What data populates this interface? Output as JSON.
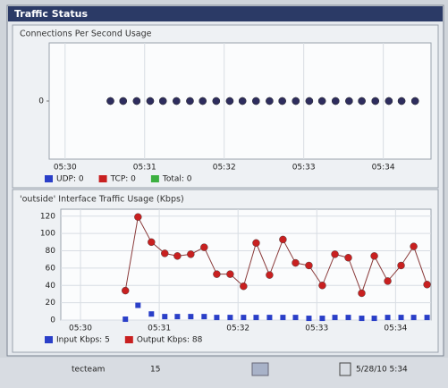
{
  "window": {
    "title": "Traffic Status"
  },
  "chart_data": [
    {
      "type": "line",
      "title": "Connections Per Second Usage",
      "x": [
        30.57,
        30.73,
        30.9,
        31.07,
        31.23,
        31.4,
        31.57,
        31.73,
        31.9,
        32.07,
        32.23,
        32.4,
        32.57,
        32.73,
        32.9,
        33.07,
        33.23,
        33.4,
        33.57,
        33.73,
        33.9,
        34.07,
        34.23,
        34.4
      ],
      "series": [
        {
          "name": "UDP: 0",
          "color": "#2a3fc8",
          "marker_color": "#2e2d5e",
          "marker": "circle",
          "values": [
            0,
            0,
            0,
            0,
            0,
            0,
            0,
            0,
            0,
            0,
            0,
            0,
            0,
            0,
            0,
            0,
            0,
            0,
            0,
            0,
            0,
            0,
            0,
            0
          ]
        },
        {
          "name": "TCP: 0",
          "color": "#c82020",
          "marker_color": "#2e2d5e",
          "marker": "circle",
          "values": [
            0,
            0,
            0,
            0,
            0,
            0,
            0,
            0,
            0,
            0,
            0,
            0,
            0,
            0,
            0,
            0,
            0,
            0,
            0,
            0,
            0,
            0,
            0,
            0
          ]
        },
        {
          "name": "Total: 0",
          "color": "#3cb040",
          "marker_color": "#2e2d5e",
          "marker": "circle",
          "values": [
            0,
            0,
            0,
            0,
            0,
            0,
            0,
            0,
            0,
            0,
            0,
            0,
            0,
            0,
            0,
            0,
            0,
            0,
            0,
            0,
            0,
            0,
            0,
            0
          ]
        }
      ],
      "xlim": [
        29.8,
        34.6
      ],
      "ylim": [
        -1,
        1
      ],
      "yticks": [
        0
      ],
      "xticks": [
        {
          "value": 30,
          "label": "05:30"
        },
        {
          "value": 31,
          "label": "05:31"
        },
        {
          "value": 32,
          "label": "05:32"
        },
        {
          "value": 33,
          "label": "05:33"
        },
        {
          "value": 34,
          "label": "05:34"
        }
      ],
      "grid": "x"
    },
    {
      "type": "line",
      "title": "'outside' Interface Traffic Usage (Kbps)",
      "x": [
        30.57,
        30.73,
        30.9,
        31.07,
        31.23,
        31.4,
        31.57,
        31.73,
        31.9,
        32.07,
        32.23,
        32.4,
        32.57,
        32.73,
        32.9,
        33.07,
        33.23,
        33.4,
        33.57,
        33.73,
        33.9,
        34.07,
        34.23,
        34.4
      ],
      "series": [
        {
          "name": "Input Kbps: 5",
          "color": "#2a3fc8",
          "marker": "square",
          "line": false,
          "values": [
            1,
            17,
            7,
            4,
            4,
            4,
            4,
            3,
            3,
            3,
            3,
            3,
            3,
            3,
            2,
            2,
            3,
            3,
            2,
            2,
            3,
            3,
            3,
            3
          ]
        },
        {
          "name": "Output Kbps: 88",
          "color": "#c82020",
          "marker": "circle",
          "line": true,
          "values": [
            34,
            119,
            90,
            77,
            74,
            76,
            84,
            53,
            53,
            39,
            89,
            52,
            93,
            66,
            63,
            40,
            76,
            72,
            31,
            74,
            45,
            63,
            85,
            41
          ]
        }
      ],
      "xlim": [
        29.75,
        34.45
      ],
      "ylim": [
        0,
        128
      ],
      "yticks": [
        0,
        20,
        40,
        60,
        80,
        100,
        120
      ],
      "xticks": [
        {
          "value": 30,
          "label": "05:30"
        },
        {
          "value": 31,
          "label": "05:31"
        },
        {
          "value": 32,
          "label": "05:32"
        },
        {
          "value": 33,
          "label": "05:33"
        },
        {
          "value": 34,
          "label": "05:34"
        }
      ],
      "grid": "xy"
    }
  ],
  "status_bar": {
    "user": "tecteam",
    "count": 15,
    "datetime": "5/28/10 5:34"
  }
}
